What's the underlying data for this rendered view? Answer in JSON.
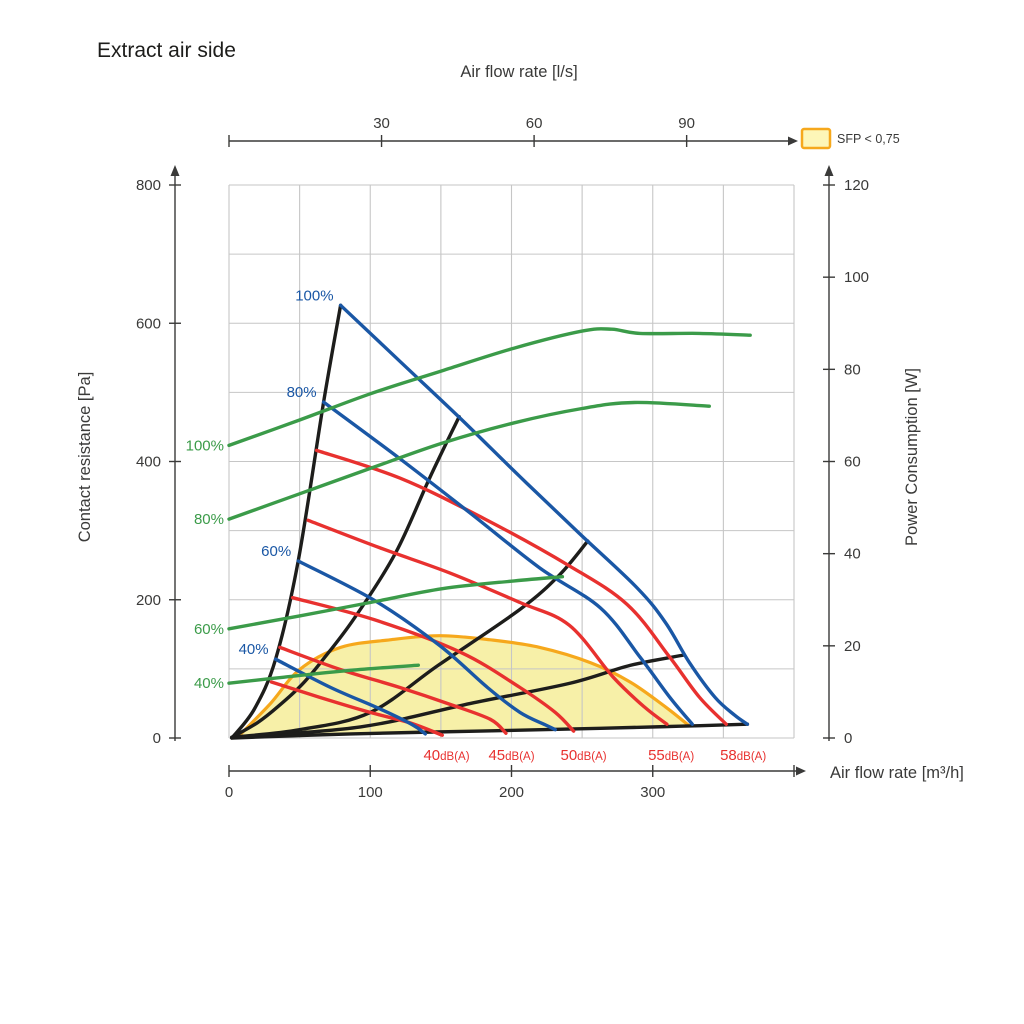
{
  "chart_data": {
    "type": "line",
    "title": "Extract air side",
    "colors": {
      "blue": "#1a57a5",
      "green": "#3b9b49",
      "red": "#e8312f",
      "black": "#1d1d1b",
      "orange": "#f6a81c",
      "region_fill": "#f7f0a8",
      "grid": "#c6c6c6",
      "axis": "#3a3a39",
      "text": "#3a3a39"
    },
    "legend": {
      "label": "SFP < 0,75",
      "fill": "#fdf6b8",
      "border": "#f6a81c"
    },
    "axes": {
      "top": {
        "label": "Air flow rate [l/s]",
        "unit": "l/s",
        "ticks": [
          30,
          60,
          90
        ]
      },
      "bottom": {
        "label": "Air flow rate [m³/h]",
        "unit": "m³/h",
        "ticks": [
          0,
          100,
          200,
          300
        ],
        "end_tick": 400,
        "range": [
          0,
          400
        ]
      },
      "left": {
        "label": "Contact resistance [Pa]",
        "unit": "Pa",
        "ticks": [
          0,
          200,
          400,
          600,
          800
        ],
        "range": [
          0,
          800
        ]
      },
      "right": {
        "label": "Power Consumption [W]",
        "unit": "W",
        "ticks": [
          0,
          20,
          40,
          60,
          80,
          100,
          120
        ],
        "range": [
          0,
          120
        ]
      }
    },
    "grid": {
      "x_step": 50,
      "y_step_pa": 100
    },
    "sfp_region": {
      "boundary": [
        [
          6,
          1
        ],
        [
          29,
          49
        ],
        [
          50,
          99
        ],
        [
          79,
          131
        ],
        [
          114,
          142
        ],
        [
          149,
          148
        ],
        [
          185,
          142
        ],
        [
          220,
          131
        ],
        [
          256,
          109
        ],
        [
          284,
          81
        ],
        [
          309,
          45
        ],
        [
          325,
          19
        ]
      ],
      "baseline": [
        [
          319,
          17
        ],
        [
          263,
          14
        ],
        [
          178,
          10
        ],
        [
          86,
          6
        ],
        [
          2,
          0
        ]
      ]
    },
    "series": [
      {
        "id": "system-curve-bottom",
        "family": "system",
        "axis": "left",
        "color": "black",
        "points": [
          [
            2,
            0
          ],
          [
            86,
            6
          ],
          [
            178,
            10
          ],
          [
            263,
            14
          ],
          [
            319,
            17
          ],
          [
            367,
            20
          ]
        ]
      },
      {
        "id": "system-curve-c",
        "family": "system",
        "axis": "left",
        "color": "black",
        "points": [
          [
            2,
            1
          ],
          [
            93,
            16
          ],
          [
            171,
            50
          ],
          [
            241,
            79
          ],
          [
            284,
            105
          ],
          [
            322,
            120
          ]
        ]
      },
      {
        "id": "system-curve-b",
        "family": "system",
        "axis": "left",
        "color": "black",
        "points": [
          [
            2,
            1
          ],
          [
            50,
            12
          ],
          [
            100,
            37
          ],
          [
            148,
            105
          ],
          [
            206,
            186
          ],
          [
            234,
            236
          ],
          [
            254,
            285
          ]
        ]
      },
      {
        "id": "system-curve-a",
        "family": "system",
        "axis": "left",
        "color": "black",
        "points": [
          [
            2,
            1
          ],
          [
            20,
            22
          ],
          [
            35,
            46
          ],
          [
            52,
            78
          ],
          [
            66,
            112
          ],
          [
            89,
            174
          ],
          [
            118,
            268
          ],
          [
            142,
            376
          ],
          [
            163,
            465
          ]
        ]
      },
      {
        "id": "surge-line",
        "family": "system",
        "axis": "left",
        "color": "black",
        "points": [
          [
            2,
            0
          ],
          [
            18,
            42
          ],
          [
            33,
            114
          ],
          [
            49,
            256
          ],
          [
            67,
            486
          ],
          [
            79,
            626
          ]
        ]
      },
      {
        "id": "noise-40dba",
        "family": "noise",
        "axis": "left",
        "color": "red",
        "label": "40dB(A)",
        "label_flow": 154,
        "points": [
          [
            30,
            81
          ],
          [
            64,
            59
          ],
          [
            100,
            37
          ],
          [
            128,
            22
          ],
          [
            151,
            4
          ]
        ]
      },
      {
        "id": "noise-45dba",
        "family": "noise",
        "axis": "left",
        "color": "red",
        "label": "45dB(A)",
        "label_flow": 200,
        "points": [
          [
            36,
            131
          ],
          [
            79,
            99
          ],
          [
            121,
            73
          ],
          [
            156,
            49
          ],
          [
            185,
            27
          ],
          [
            196,
            7
          ]
        ]
      },
      {
        "id": "noise-50dba",
        "family": "noise",
        "axis": "left",
        "color": "red",
        "label": "50dB(A)",
        "label_flow": 251,
        "points": [
          [
            45,
            203
          ],
          [
            103,
            171
          ],
          [
            164,
            124
          ],
          [
            206,
            73
          ],
          [
            231,
            37
          ],
          [
            244,
            10
          ]
        ]
      },
      {
        "id": "noise-55dba",
        "family": "noise",
        "axis": "left",
        "color": "red",
        "label": "55dB(A)",
        "label_flow": 313,
        "points": [
          [
            56,
            315
          ],
          [
            107,
            275
          ],
          [
            156,
            239
          ],
          [
            206,
            196
          ],
          [
            241,
            163
          ],
          [
            272,
            88
          ],
          [
            294,
            45
          ],
          [
            310,
            20
          ]
        ]
      },
      {
        "id": "noise-58dba",
        "family": "noise",
        "axis": "left",
        "color": "red",
        "label": "58dB(A)",
        "label_flow": 364,
        "points": [
          [
            62,
            416
          ],
          [
            121,
            376
          ],
          [
            180,
            318
          ],
          [
            241,
            249
          ],
          [
            282,
            193
          ],
          [
            312,
            117
          ],
          [
            333,
            59
          ],
          [
            352,
            20
          ]
        ]
      },
      {
        "id": "fan-speed-40",
        "family": "fan",
        "axis": "left",
        "color": "blue",
        "label": "40%",
        "points": [
          [
            33,
            114
          ],
          [
            72,
            73
          ],
          [
            107,
            42
          ],
          [
            130,
            19
          ],
          [
            139,
            6
          ]
        ]
      },
      {
        "id": "fan-speed-60",
        "family": "fan",
        "axis": "left",
        "color": "blue",
        "label": "60%",
        "points": [
          [
            49,
            256
          ],
          [
            103,
            199
          ],
          [
            149,
            134
          ],
          [
            183,
            73
          ],
          [
            206,
            37
          ],
          [
            224,
            19
          ],
          [
            231,
            12
          ]
        ]
      },
      {
        "id": "fan-speed-80",
        "family": "fan",
        "axis": "left",
        "color": "blue",
        "label": "80%",
        "points": [
          [
            67,
            486
          ],
          [
            121,
            404
          ],
          [
            171,
            325
          ],
          [
            220,
            246
          ],
          [
            263,
            188
          ],
          [
            291,
            117
          ],
          [
            312,
            59
          ],
          [
            328,
            20
          ]
        ]
      },
      {
        "id": "fan-speed-100",
        "family": "fan",
        "axis": "left",
        "color": "blue",
        "label": "100%",
        "points": [
          [
            79,
            626
          ],
          [
            121,
            545
          ],
          [
            164,
            462
          ],
          [
            206,
            378
          ],
          [
            248,
            296
          ],
          [
            289,
            217
          ],
          [
            309,
            167
          ],
          [
            326,
            109
          ],
          [
            344,
            59
          ],
          [
            358,
            33
          ],
          [
            367,
            20
          ]
        ]
      },
      {
        "id": "power-40",
        "family": "power",
        "axis": "right",
        "color": "green",
        "label": "40%",
        "points": [
          [
            0,
            11.9
          ],
          [
            39,
            13.2
          ],
          [
            86,
            14.7
          ],
          [
            134,
            15.8
          ]
        ]
      },
      {
        "id": "power-60",
        "family": "power",
        "axis": "right",
        "color": "green",
        "label": "60%",
        "points": [
          [
            0,
            23.7
          ],
          [
            50,
            26.5
          ],
          [
            100,
            29.4
          ],
          [
            151,
            32.4
          ],
          [
            202,
            34.1
          ],
          [
            236,
            35
          ]
        ]
      },
      {
        "id": "power-80",
        "family": "power",
        "axis": "right",
        "color": "green",
        "label": "80%",
        "points": [
          [
            0,
            47.5
          ],
          [
            50,
            53
          ],
          [
            100,
            58.5
          ],
          [
            151,
            64
          ],
          [
            202,
            68.4
          ],
          [
            250,
            71.5
          ],
          [
            287,
            72.8
          ],
          [
            340,
            72
          ]
        ]
      },
      {
        "id": "power-100",
        "family": "power",
        "axis": "right",
        "color": "green",
        "label": "100%",
        "points": [
          [
            0,
            63.5
          ],
          [
            50,
            69
          ],
          [
            100,
            74.7
          ],
          [
            151,
            79.7
          ],
          [
            202,
            84.6
          ],
          [
            250,
            88.3
          ],
          [
            271,
            88.7
          ],
          [
            291,
            87.8
          ],
          [
            333,
            87.8
          ],
          [
            369,
            87.4
          ]
        ]
      }
    ]
  }
}
